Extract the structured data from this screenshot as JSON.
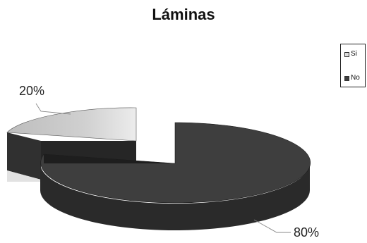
{
  "chart_data": {
    "type": "pie",
    "title": "Láminas",
    "categories": [
      "Si",
      "No"
    ],
    "values": [
      20,
      80
    ],
    "data_labels": [
      "20%",
      "80%"
    ],
    "legend": "right",
    "style": "3d",
    "colors": {
      "Si": "#d8d8d8",
      "No": "#3e3e3e",
      "No_side": "#2a2a2a",
      "Si_side": "#303030"
    }
  }
}
